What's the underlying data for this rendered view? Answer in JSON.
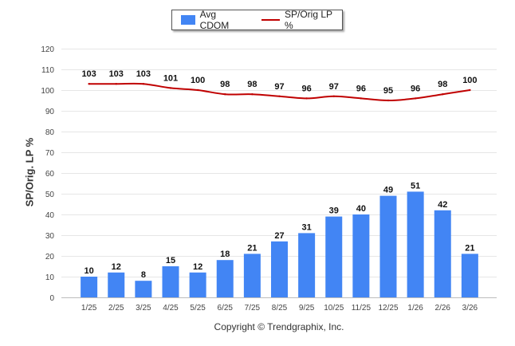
{
  "chart_data": {
    "type": "bar+line",
    "categories": [
      "1/25",
      "2/25",
      "3/25",
      "4/25",
      "5/25",
      "6/25",
      "7/25",
      "8/25",
      "9/25",
      "10/25",
      "11/25",
      "12/25",
      "1/26",
      "2/26",
      "3/26"
    ],
    "series": [
      {
        "name": "Avg CDOM",
        "type": "bar",
        "color": "#4285f4",
        "values": [
          10,
          12,
          8,
          15,
          12,
          18,
          21,
          27,
          31,
          39,
          40,
          49,
          51,
          42,
          21
        ]
      },
      {
        "name": "SP/Orig LP %",
        "type": "line",
        "color": "#c00000",
        "values": [
          103,
          103,
          103,
          101,
          100,
          98,
          98,
          97,
          96,
          97,
          96,
          95,
          96,
          98,
          100
        ]
      }
    ],
    "ylabel": "SP/Orig. LP %",
    "ylim": [
      0,
      120
    ],
    "yticks": [
      0,
      10,
      20,
      30,
      40,
      50,
      60,
      70,
      80,
      90,
      100,
      110,
      120
    ],
    "grid": true,
    "legend_position": "top-center"
  },
  "footer": {
    "copyright": "Copyright © Trendgraphix, Inc."
  }
}
